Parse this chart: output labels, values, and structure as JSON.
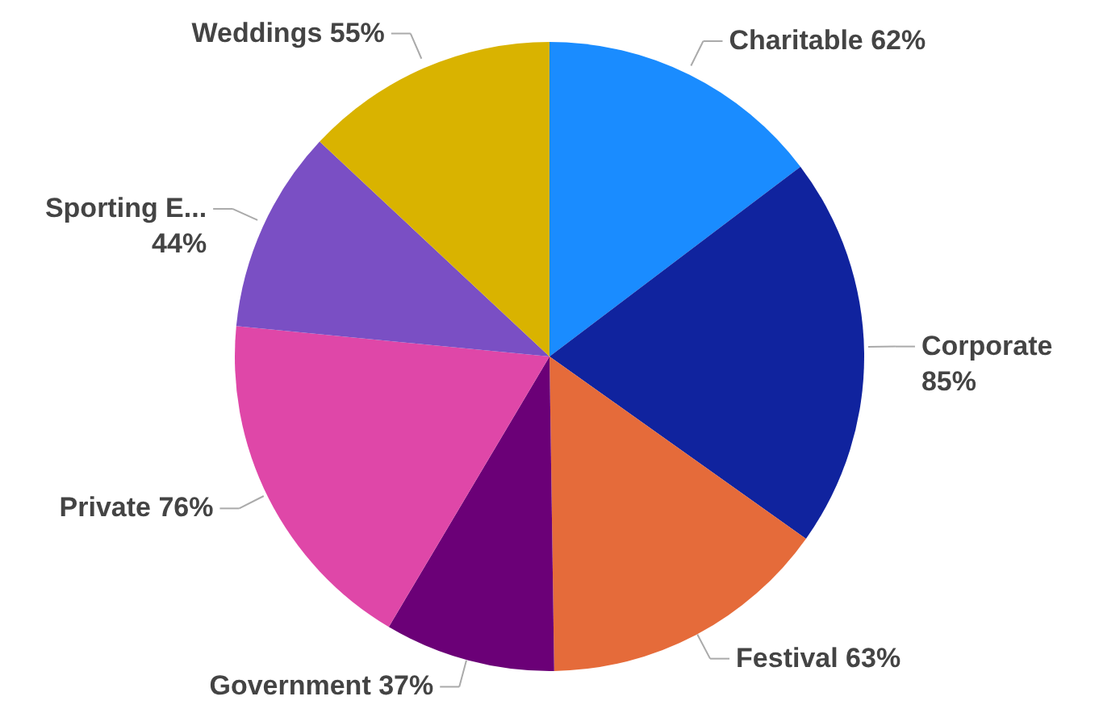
{
  "chart_data": {
    "type": "pie",
    "categories": [
      "Charitable",
      "Corporate",
      "Festival",
      "Government",
      "Private",
      "Sporting E...",
      "Weddings"
    ],
    "values": [
      62,
      85,
      63,
      37,
      76,
      44,
      55
    ],
    "value_labels": [
      "62%",
      "85%",
      "63%",
      "37%",
      "76%",
      "44%",
      "55%"
    ],
    "colors": [
      "#1a8cff",
      "#10239e",
      "#e56b3a",
      "#6b0077",
      "#df47a8",
      "#7a4fc4",
      "#d9b300"
    ]
  }
}
